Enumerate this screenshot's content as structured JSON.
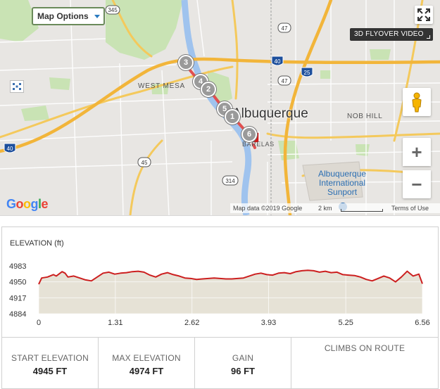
{
  "map": {
    "options_label": "Map Options",
    "flyover_label": "3D FLYOVER VIDEO",
    "zoom_in": "+",
    "zoom_out": "−",
    "labels": {
      "west_mesa": "WEST MESA",
      "city": "Albuquerque",
      "nob_hill": "NOB HILL",
      "barelas": "BARELAS",
      "sunport_1": "Albuquerque",
      "sunport_2": "International",
      "sunport_3": "Sunport"
    },
    "route_shields": [
      "345",
      "47",
      "40",
      "25",
      "47",
      "40",
      "45",
      "314"
    ],
    "markers": [
      "3",
      "4",
      "2",
      "5",
      "1",
      "6"
    ],
    "attribution": {
      "map_data": "Map data ©2019 Google",
      "scale": "2 km",
      "terms": "Terms of Use"
    },
    "logo": "Google"
  },
  "elevation": {
    "title": "ELEVATION (ft)"
  },
  "chart_data": {
    "type": "area",
    "title": "ELEVATION (ft)",
    "xlabel": "",
    "ylabel": "",
    "x_ticks": [
      0,
      1.31,
      2.62,
      3.93,
      5.25,
      6.56
    ],
    "y_ticks": [
      4884,
      4917,
      4950,
      4983
    ],
    "xlim": [
      0,
      6.56
    ],
    "ylim": [
      4884,
      4983
    ],
    "grid": true,
    "x": [
      0,
      0.05,
      0.15,
      0.25,
      0.3,
      0.4,
      0.45,
      0.5,
      0.6,
      0.7,
      0.8,
      0.9,
      1.0,
      1.1,
      1.2,
      1.3,
      1.4,
      1.5,
      1.6,
      1.7,
      1.8,
      1.9,
      2.0,
      2.1,
      2.2,
      2.3,
      2.4,
      2.5,
      2.6,
      2.7,
      2.8,
      2.9,
      3.0,
      3.1,
      3.2,
      3.3,
      3.4,
      3.5,
      3.6,
      3.7,
      3.8,
      3.9,
      4.0,
      4.1,
      4.2,
      4.3,
      4.4,
      4.5,
      4.6,
      4.7,
      4.8,
      4.9,
      5.0,
      5.1,
      5.2,
      5.3,
      5.4,
      5.5,
      5.6,
      5.7,
      5.8,
      5.9,
      6.0,
      6.1,
      6.2,
      6.3,
      6.4,
      6.5,
      6.56
    ],
    "y": [
      4945,
      4958,
      4960,
      4965,
      4962,
      4971,
      4968,
      4960,
      4962,
      4958,
      4954,
      4952,
      4960,
      4968,
      4970,
      4966,
      4968,
      4969,
      4971,
      4972,
      4970,
      4964,
      4960,
      4966,
      4969,
      4965,
      4962,
      4958,
      4957,
      4955,
      4956,
      4957,
      4958,
      4957,
      4956,
      4956,
      4957,
      4958,
      4962,
      4966,
      4968,
      4965,
      4964,
      4968,
      4969,
      4967,
      4971,
      4973,
      4974,
      4973,
      4970,
      4972,
      4969,
      4970,
      4965,
      4964,
      4963,
      4960,
      4955,
      4952,
      4957,
      4962,
      4958,
      4950,
      4960,
      4972,
      4962,
      4966,
      4946
    ]
  },
  "stats": {
    "start_label": "START ELEVATION",
    "start_value": "4945 FT",
    "max_label": "MAX ELEVATION",
    "max_value": "4974 FT",
    "gain_label": "GAIN",
    "gain_value": "96 FT",
    "climbs_label": "CLIMBS ON ROUTE"
  },
  "colors": {
    "route": "#e05050",
    "elevation_line": "#cc1f1f",
    "elevation_fill": "#e6e2d6",
    "road": "#f2c94c",
    "water": "#9fc3ee",
    "park": "#c7e2b0"
  }
}
